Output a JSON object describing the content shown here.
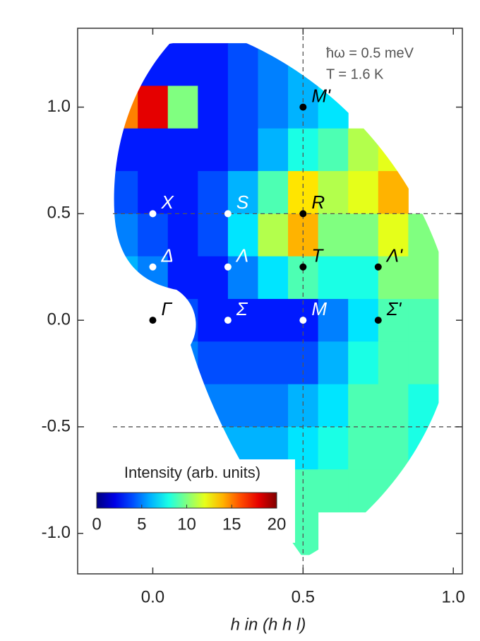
{
  "chart_data": {
    "type": "heatmap",
    "annotations": [
      "ħω = 0.5 meV",
      "T = 1.6 K"
    ],
    "xlabel": "h in (h h l)",
    "xlim": [
      -0.25,
      1.03
    ],
    "ylim": [
      -1.19,
      1.37
    ],
    "xticks": [
      {
        "value": 0,
        "label": "0.0"
      },
      {
        "value": 0.5,
        "label": "0.5"
      },
      {
        "value": 1,
        "label": "1.0"
      }
    ],
    "yticks": [
      {
        "value": -1,
        "label": "-1.0"
      },
      {
        "value": -0.5,
        "label": "-0.5"
      },
      {
        "value": 0,
        "label": "0.0"
      },
      {
        "value": 0.5,
        "label": "0.5"
      },
      {
        "value": 1,
        "label": "1.0"
      }
    ],
    "x": [
      -0.1,
      0.0,
      0.1,
      0.2,
      0.3,
      0.4,
      0.5,
      0.6,
      0.7,
      0.8,
      0.9
    ],
    "y": [
      1.2,
      1.0,
      0.8,
      0.6,
      0.4,
      0.2,
      0.0,
      -0.2,
      -0.4,
      -0.6,
      -0.8,
      -1.0
    ],
    "values": [
      [
        null,
        3,
        3,
        3,
        4,
        5,
        6,
        7,
        null,
        null,
        null
      ],
      [
        15,
        18,
        10,
        3,
        4,
        5,
        6,
        7,
        null,
        null,
        null
      ],
      [
        3,
        3,
        3,
        3,
        4,
        6,
        8,
        9,
        11,
        12,
        null
      ],
      [
        4,
        3,
        3,
        4,
        6,
        9,
        13,
        11,
        12,
        14,
        null
      ],
      [
        5,
        4,
        3,
        4,
        7,
        11,
        14,
        10,
        10,
        12,
        10
      ],
      [
        6,
        5,
        3,
        3,
        5,
        7,
        9,
        8,
        8,
        10,
        10
      ],
      [
        null,
        6,
        4,
        3,
        3,
        3,
        3,
        5,
        7,
        9,
        9
      ],
      [
        null,
        null,
        5,
        4,
        4,
        4,
        4,
        6,
        8,
        9,
        9
      ],
      [
        null,
        null,
        null,
        5,
        5,
        5,
        6,
        7,
        9,
        9,
        8
      ],
      [
        null,
        null,
        null,
        6,
        6,
        6,
        7,
        8,
        9,
        9,
        8
      ],
      [
        null,
        null,
        null,
        7,
        8,
        8,
        9,
        9,
        9,
        9,
        null
      ],
      [
        null,
        null,
        null,
        null,
        8,
        8,
        9,
        null,
        null,
        null,
        null
      ]
    ],
    "colormap": "jet",
    "colorbar": {
      "label": "Intensity (arb. units)",
      "lim": [
        0,
        20
      ],
      "ticks": [
        0,
        5,
        10,
        15,
        20
      ]
    },
    "lines": [
      {
        "axis": "x",
        "value": 0.5
      },
      {
        "axis": "y",
        "value": 0.5
      },
      {
        "axis": "y",
        "value": -0.5
      }
    ],
    "points": [
      {
        "label": "Γ",
        "h": 0,
        "l": 0,
        "color": "#000000"
      },
      {
        "label": "X",
        "h": 0,
        "l": 0.5,
        "color": "#ffffff"
      },
      {
        "label": "S",
        "h": 0.25,
        "l": 0.5,
        "color": "#ffffff"
      },
      {
        "label": "Δ",
        "h": 0,
        "l": 0.25,
        "color": "#ffffff"
      },
      {
        "label": "Λ",
        "h": 0.25,
        "l": 0.25,
        "color": "#ffffff"
      },
      {
        "label": "Σ",
        "h": 0.25,
        "l": 0,
        "color": "#ffffff"
      },
      {
        "label": "M",
        "h": 0.5,
        "l": 0,
        "color": "#ffffff"
      },
      {
        "label": "M'",
        "h": 0.5,
        "l": 1.0,
        "color": "#000000"
      },
      {
        "label": "R",
        "h": 0.5,
        "l": 0.5,
        "color": "#000000"
      },
      {
        "label": "T",
        "h": 0.5,
        "l": 0.25,
        "color": "#000000"
      },
      {
        "label": "Λ'",
        "h": 0.75,
        "l": 0.25,
        "color": "#000000"
      },
      {
        "label": "Σ'",
        "h": 0.75,
        "l": 0,
        "color": "#000000"
      }
    ]
  }
}
